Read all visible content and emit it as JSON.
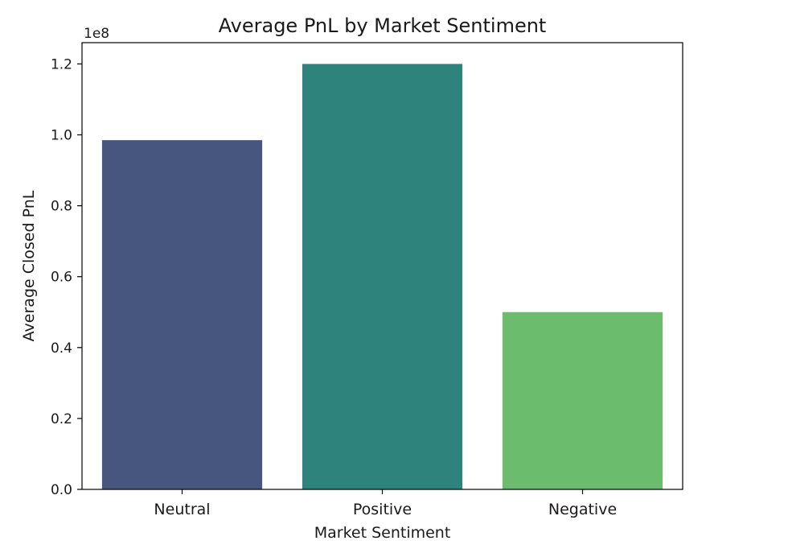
{
  "chart_data": {
    "type": "bar",
    "title": "Average PnL by Market Sentiment",
    "xlabel": "Market Sentiment",
    "ylabel": "Average Closed PnL",
    "y_offset_label": "1e8",
    "categories": [
      "Neutral",
      "Positive",
      "Negative"
    ],
    "values": [
      98500000,
      120000000,
      50000000
    ],
    "colors": [
      "#46567f",
      "#2e837c",
      "#6bbd6d"
    ],
    "ylim": [
      0,
      126000000
    ],
    "yticks": [
      0,
      20000000,
      40000000,
      60000000,
      80000000,
      100000000,
      120000000
    ],
    "ytick_labels": [
      "0.0",
      "0.2",
      "0.4",
      "0.6",
      "0.8",
      "1.0",
      "1.2"
    ],
    "grid": false,
    "legend": "none"
  }
}
